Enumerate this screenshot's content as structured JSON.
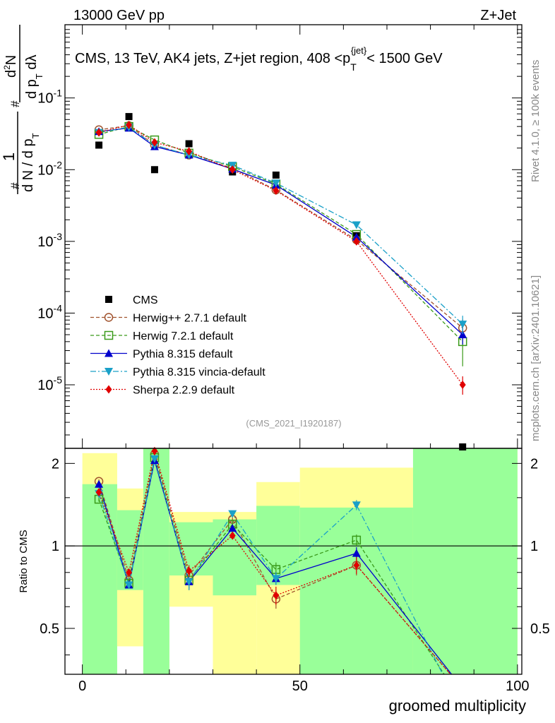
{
  "header": {
    "left": "13000 GeV pp",
    "right": "Z+Jet"
  },
  "side_labels": {
    "rivet": "Rivet 4.1.0, ≥ 100k events",
    "mcplots": "mcplots.cern.ch [arXiv:2401.10621]"
  },
  "chart_data": {
    "type": "line",
    "title": "CMS, 13 TeV, AK4 jets, Z+jet region, 408 <p_T^{jet}< 1500 GeV",
    "analysis_id": "(CMS_2021_I1920187)",
    "xlabel": "groomed multiplicity",
    "ylabel_parts": {
      "num": "1",
      "den": "d N / d p_T",
      "num2": "d²N",
      "den2": "d p_T d λ",
      "hash": "#"
    },
    "ratio_ylabel": "Ratio to CMS",
    "xlim": [
      -4,
      101
    ],
    "ylim_log": [
      1.3e-06,
      1.05
    ],
    "ratio_ylim": [
      0.34,
      2.27
    ],
    "x_ticks": [
      0,
      50,
      100
    ],
    "y_ticks": [
      {
        "value": 1e-05,
        "label": "10^{-5}"
      },
      {
        "value": 0.0001,
        "label": "10^{-4}"
      },
      {
        "value": 0.001,
        "label": "10^{-3}"
      },
      {
        "value": 0.01,
        "label": "10^{-2}"
      },
      {
        "value": 0.1,
        "label": "10^{-1}"
      }
    ],
    "ratio_y_ticks": [
      {
        "value": 0.5,
        "label": "0.5"
      },
      {
        "value": 1,
        "label": "1"
      },
      {
        "value": 2,
        "label": "2"
      }
    ],
    "bins": [
      {
        "lo": 0,
        "hi": 8,
        "x": 3.8
      },
      {
        "lo": 8,
        "hi": 14,
        "x": 10.7
      },
      {
        "lo": 14,
        "hi": 20,
        "x": 16.6
      },
      {
        "lo": 20,
        "hi": 30,
        "x": 24.5
      },
      {
        "lo": 30,
        "hi": 40,
        "x": 34.5
      },
      {
        "lo": 40,
        "hi": 50,
        "x": 44.5
      },
      {
        "lo": 50,
        "hi": 76,
        "x": 63
      },
      {
        "lo": 76,
        "hi": 100,
        "x": 87.4
      }
    ],
    "bands": [
      {
        "lo": 0,
        "hi": 8,
        "yellow": [
          0.62,
          2.18
        ],
        "green": [
          0.34,
          1.68
        ]
      },
      {
        "lo": 8,
        "hi": 14,
        "yellow": [
          0.43,
          1.62
        ],
        "green": [
          0.69,
          1.35
        ]
      },
      {
        "lo": 14,
        "hi": 20,
        "yellow": [
          0.34,
          2.27
        ],
        "green": [
          0.34,
          2.27
        ]
      },
      {
        "lo": 20,
        "hi": 30,
        "yellow": [
          0.6,
          1.33
        ],
        "green": [
          0.78,
          1.22
        ]
      },
      {
        "lo": 30,
        "hi": 40,
        "yellow": [
          0.34,
          1.33
        ],
        "green": [
          0.66,
          1.25
        ]
      },
      {
        "lo": 40,
        "hi": 50,
        "yellow": [
          0.34,
          1.71
        ],
        "green": [
          0.72,
          1.4
        ]
      },
      {
        "lo": 50,
        "hi": 76,
        "yellow": [
          0.34,
          1.93
        ],
        "green": [
          0.34,
          1.38
        ]
      },
      {
        "lo": 76,
        "hi": 100,
        "yellow": [
          0.34,
          2.27
        ],
        "green": [
          0.34,
          2.27
        ]
      }
    ],
    "series": [
      {
        "name": "CMS",
        "key": "cms",
        "color": "#000000",
        "marker": "square",
        "dash": "",
        "values": [
          0.022,
          0.055,
          0.01,
          0.023,
          0.0093,
          0.0084,
          0.0012,
          1.3e-06
        ]
      },
      {
        "name": "Herwig++ 2.7.1 default",
        "key": "herwigpp",
        "color": "#a0522d",
        "marker": "circle-open",
        "dash": "5,3",
        "values": [
          0.036,
          0.041,
          0.022,
          0.016,
          0.0105,
          0.0052,
          0.00105,
          6.2e-05
        ],
        "ratio": [
          1.72,
          0.75,
          2.16,
          0.78,
          1.25,
          0.64,
          0.85,
          null
        ],
        "ratio_err": [
          0.03,
          0.02,
          0.05,
          0.05,
          0.03,
          0.05,
          0.07,
          null
        ]
      },
      {
        "name": "Herwig 7.2.1 default",
        "key": "herwig7",
        "color": "#3a9a1a",
        "marker": "square-open",
        "dash": "5,3",
        "values": [
          0.031,
          0.04,
          0.026,
          0.017,
          0.011,
          0.0063,
          0.00125,
          4e-05
        ],
        "ratio": [
          1.48,
          0.73,
          2.1,
          0.75,
          1.2,
          0.82,
          1.05,
          null
        ],
        "ratio_err": [
          0.03,
          0.02,
          0.05,
          0.05,
          0.03,
          0.05,
          0.05,
          null
        ]
      },
      {
        "name": "Pythia 8.315 default",
        "key": "pythia",
        "color": "#0000cc",
        "marker": "triangle-up",
        "dash": "",
        "values": [
          0.034,
          0.038,
          0.021,
          0.016,
          0.0102,
          0.0061,
          0.00115,
          5e-05
        ],
        "ratio": [
          1.68,
          0.72,
          2.05,
          0.74,
          1.16,
          0.76,
          0.94,
          null
        ],
        "ratio_err": [
          0.03,
          0.02,
          0.05,
          0.05,
          0.03,
          0.04,
          0.05,
          null
        ]
      },
      {
        "name": "Pythia 8.315 vincia-default",
        "key": "vincia",
        "color": "#1aa0c8",
        "marker": "triangle-down",
        "dash": "8,3,2,3",
        "values": [
          0.033,
          0.039,
          0.022,
          0.016,
          0.0115,
          0.0065,
          0.0017,
          7e-05
        ],
        "ratio": [
          1.55,
          0.72,
          2.08,
          0.74,
          1.31,
          0.76,
          1.41,
          null
        ],
        "ratio_err": [
          0.03,
          0.02,
          0.05,
          0.05,
          0.03,
          0.04,
          0.06,
          null
        ]
      },
      {
        "name": "Sherpa 2.2.9 default",
        "key": "sherpa",
        "color": "#e00000",
        "marker": "diamond",
        "dash": "2,2",
        "values": [
          0.033,
          0.042,
          0.024,
          0.018,
          0.01,
          0.0051,
          0.001,
          1e-05
        ],
        "ratio": [
          1.57,
          0.8,
          2.22,
          0.81,
          1.09,
          0.66,
          0.85,
          null
        ],
        "ratio_err": [
          0.03,
          0.02,
          0.05,
          0.04,
          0.03,
          0.05,
          0.06,
          null
        ]
      }
    ]
  }
}
